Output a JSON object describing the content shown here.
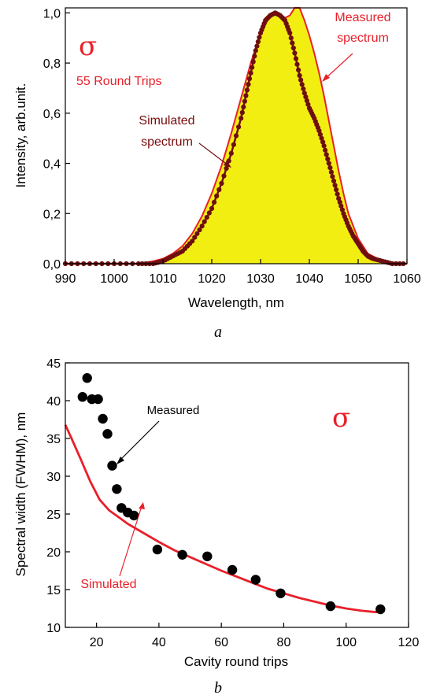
{
  "colors": {
    "measured_fill": "#f2ee12",
    "measured_line": "#e8202a",
    "simulated_dots": "#6e0f0f",
    "simulated_line": "#e8202a",
    "measured_points": "#000000"
  },
  "chart_data": [
    {
      "type": "area",
      "panel_label": "a",
      "xlabel": "Wavelength, nm",
      "ylabel": "Intensity, arb.unit.",
      "xlim": [
        990,
        1060
      ],
      "ylim": [
        0,
        1.02
      ],
      "xticks": [
        "990",
        "1000",
        "1010",
        "1020",
        "1030",
        "1040",
        "1050",
        "1060"
      ],
      "yticks": [
        "0,0",
        "0,2",
        "0,4",
        "0,6",
        "0,8",
        "1,0"
      ],
      "grid": false,
      "annotations": {
        "symbol": "σ",
        "round_trips": "55 Round Trips",
        "measured_label_1": "Measured",
        "measured_label_2": "spectrum",
        "simulated_label_1": "Simulated",
        "simulated_label_2": "spectrum"
      },
      "series": [
        {
          "name": "Measured spectrum",
          "style": "filled area",
          "x": [
            990,
            1000,
            1005,
            1008,
            1010,
            1012,
            1014,
            1016,
            1018,
            1020,
            1022,
            1024,
            1026,
            1028,
            1030,
            1032,
            1033,
            1034,
            1035,
            1036,
            1037,
            1038,
            1039,
            1040,
            1041,
            1042,
            1043,
            1044,
            1045,
            1046,
            1047,
            1048,
            1050,
            1052,
            1055,
            1057,
            1060
          ],
          "y": [
            0.0,
            0.0,
            0.0,
            0.01,
            0.02,
            0.04,
            0.07,
            0.12,
            0.19,
            0.28,
            0.39,
            0.52,
            0.66,
            0.8,
            0.92,
            0.99,
            1.0,
            0.99,
            0.98,
            0.99,
            1.02,
            1.02,
            0.97,
            0.91,
            0.84,
            0.76,
            0.67,
            0.57,
            0.47,
            0.37,
            0.28,
            0.2,
            0.1,
            0.04,
            0.01,
            0.0,
            0.0
          ]
        },
        {
          "name": "Simulated spectrum",
          "style": "dots",
          "x": [
            990,
            995,
            1000,
            1005,
            1008,
            1010,
            1012,
            1014,
            1016,
            1018,
            1020,
            1022,
            1024,
            1026,
            1027,
            1028,
            1029,
            1030,
            1031,
            1032,
            1033,
            1034,
            1035,
            1036,
            1037,
            1038,
            1039,
            1040,
            1041,
            1042,
            1043,
            1044,
            1045,
            1046,
            1047,
            1048,
            1049,
            1050,
            1051,
            1052,
            1053,
            1055,
            1057,
            1060
          ],
          "y": [
            0.0,
            0.0,
            0.0,
            0.0,
            0.0,
            0.01,
            0.03,
            0.05,
            0.09,
            0.15,
            0.22,
            0.32,
            0.44,
            0.58,
            0.67,
            0.76,
            0.85,
            0.92,
            0.97,
            0.99,
            1.0,
            0.99,
            0.97,
            0.92,
            0.84,
            0.75,
            0.68,
            0.62,
            0.58,
            0.53,
            0.47,
            0.4,
            0.33,
            0.26,
            0.2,
            0.15,
            0.11,
            0.08,
            0.05,
            0.03,
            0.02,
            0.01,
            0.0,
            0.0
          ]
        }
      ]
    },
    {
      "type": "scatter",
      "panel_label": "b",
      "xlabel": "Cavity round trips",
      "ylabel": "Spectral width (FWHM), nm",
      "xlim": [
        10,
        120
      ],
      "ylim": [
        10,
        45
      ],
      "xticks": [
        "20",
        "40",
        "60",
        "80",
        "100",
        "120"
      ],
      "yticks": [
        "10",
        "15",
        "20",
        "25",
        "30",
        "35",
        "40",
        "45"
      ],
      "grid": false,
      "annotations": {
        "symbol": "σ",
        "measured_label": "Measured",
        "simulated_label": "Simulated"
      },
      "series": [
        {
          "name": "Measured",
          "style": "points",
          "x": [
            15.5,
            17,
            18.5,
            20.5,
            22,
            23.5,
            25,
            26.5,
            28,
            30,
            32,
            39.5,
            47.5,
            55.5,
            63.5,
            71,
            79,
            95,
            111
          ],
          "y": [
            40.5,
            43.0,
            40.2,
            40.2,
            37.6,
            35.6,
            31.4,
            28.3,
            25.8,
            25.2,
            24.8,
            20.3,
            19.6,
            19.4,
            17.6,
            16.3,
            14.5,
            12.8,
            12.4
          ]
        },
        {
          "name": "Simulated",
          "style": "line",
          "x": [
            10,
            12,
            15,
            18,
            21,
            24,
            27,
            30,
            35,
            40,
            45,
            50,
            55,
            60,
            65,
            70,
            75,
            80,
            85,
            90,
            95,
            100,
            105,
            110
          ],
          "y": [
            36.8,
            35.0,
            32.2,
            29.3,
            26.9,
            25.5,
            24.6,
            23.7,
            22.5,
            21.3,
            20.2,
            19.3,
            18.4,
            17.5,
            16.7,
            15.9,
            15.1,
            14.5,
            13.9,
            13.4,
            12.9,
            12.5,
            12.2,
            12.0
          ]
        }
      ]
    }
  ]
}
